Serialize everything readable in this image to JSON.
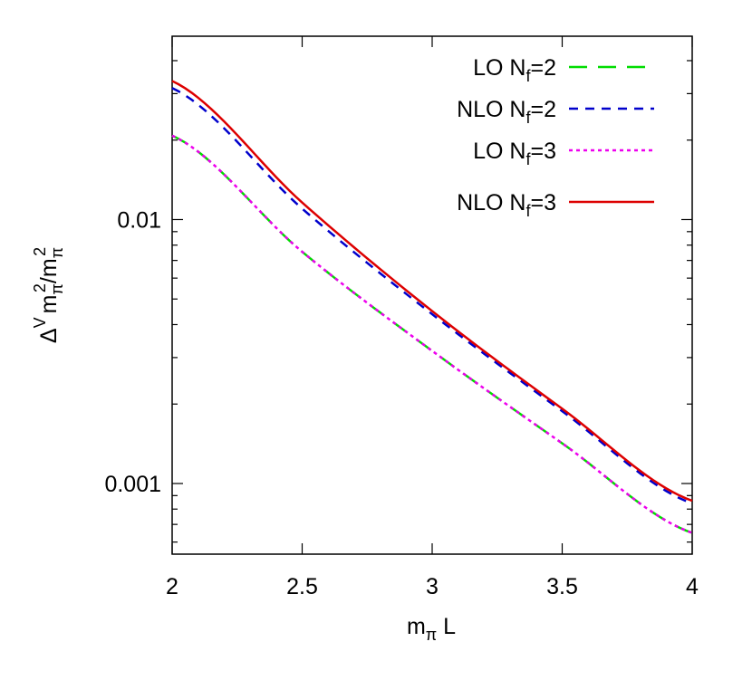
{
  "chart_data": {
    "type": "line",
    "xlabel": {
      "main": "m",
      "sub": "π",
      "rest": " L"
    },
    "ylabel": {
      "delta": "Δ",
      "sup_v": "V",
      "m1": "m",
      "sub1": "π",
      "sup1": "2",
      "slash": "/m",
      "sub2": "π",
      "sup2": "2"
    },
    "xlim": [
      2,
      4
    ],
    "ylim": [
      0.00054,
      0.0495
    ],
    "yscale": "log",
    "xticks": [
      2,
      2.5,
      3,
      3.5,
      4
    ],
    "xtick_labels": [
      "2",
      "2.5",
      "3",
      "3.5",
      "4"
    ],
    "yticks_major": [
      0.001,
      0.01
    ],
    "ytick_labels": [
      "0.001",
      "0.01"
    ],
    "grid": false,
    "legend_position": "top-right",
    "series": [
      {
        "name_main": "LO N",
        "name_sub": "f",
        "name_rest": "=2",
        "color": "#00dd00",
        "dash": "20,12",
        "width": 2.5,
        "points": [
          [
            2,
            0.0208
          ],
          [
            2.5,
            0.00755
          ],
          [
            3,
            0.00318
          ],
          [
            3.5,
            0.00142
          ],
          [
            4,
            0.00065
          ]
        ]
      },
      {
        "name_main": "NLO N",
        "name_sub": "f",
        "name_rest": "=2",
        "color": "#0000cc",
        "dash": "10,8",
        "width": 2.5,
        "points": [
          [
            2,
            0.0315
          ],
          [
            2.5,
            0.011
          ],
          [
            3,
            0.00438
          ],
          [
            3.5,
            0.00188
          ],
          [
            4,
            0.00084
          ]
        ]
      },
      {
        "name_main": "LO N",
        "name_sub": "f",
        "name_rest": "=3",
        "color": "#ee00ee",
        "dash": "4,4",
        "width": 2.5,
        "points": [
          [
            2,
            0.0208
          ],
          [
            2.5,
            0.00755
          ],
          [
            3,
            0.00318
          ],
          [
            3.5,
            0.00142
          ],
          [
            4,
            0.00065
          ]
        ]
      },
      {
        "name_main": "NLO N",
        "name_sub": "f",
        "name_rest": "=3",
        "color": "#dd0000",
        "dash": "",
        "width": 2.5,
        "points": [
          [
            2,
            0.0335
          ],
          [
            2.5,
            0.0116
          ],
          [
            3,
            0.0045
          ],
          [
            3.5,
            0.00192
          ],
          [
            4,
            0.00086
          ]
        ]
      }
    ]
  }
}
